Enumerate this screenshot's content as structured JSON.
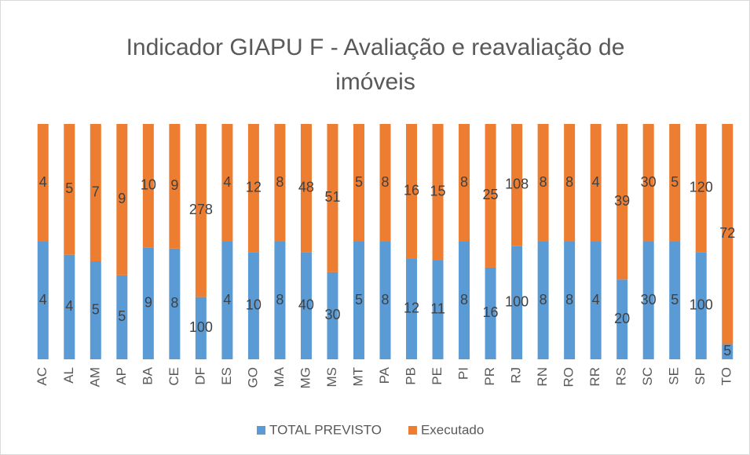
{
  "chart_data": {
    "type": "bar",
    "stacking": "percent",
    "title": "Indicador GIAPU F - Avaliação e reavaliação de imóveis",
    "categories": [
      "AC",
      "AL",
      "AM",
      "AP",
      "BA",
      "CE",
      "DF",
      "ES",
      "GO",
      "MA",
      "MG",
      "MS",
      "MT",
      "PA",
      "PB",
      "PE",
      "PI",
      "PR",
      "RJ",
      "RN",
      "RO",
      "RR",
      "RS",
      "SC",
      "SE",
      "SP",
      "TO"
    ],
    "series": [
      {
        "name": "TOTAL PREVISTO",
        "color": "#5b9bd5",
        "values": [
          4,
          4,
          5,
          5,
          9,
          8,
          100,
          4,
          10,
          8,
          40,
          30,
          5,
          8,
          12,
          11,
          8,
          16,
          100,
          8,
          8,
          4,
          20,
          30,
          5,
          100,
          5
        ]
      },
      {
        "name": "Executado",
        "color": "#ed7d31",
        "values": [
          4,
          5,
          7,
          9,
          10,
          9,
          278,
          4,
          12,
          8,
          48,
          51,
          5,
          8,
          16,
          15,
          8,
          25,
          108,
          8,
          8,
          4,
          39,
          30,
          5,
          120,
          72
        ]
      }
    ],
    "legend": "bottom"
  }
}
